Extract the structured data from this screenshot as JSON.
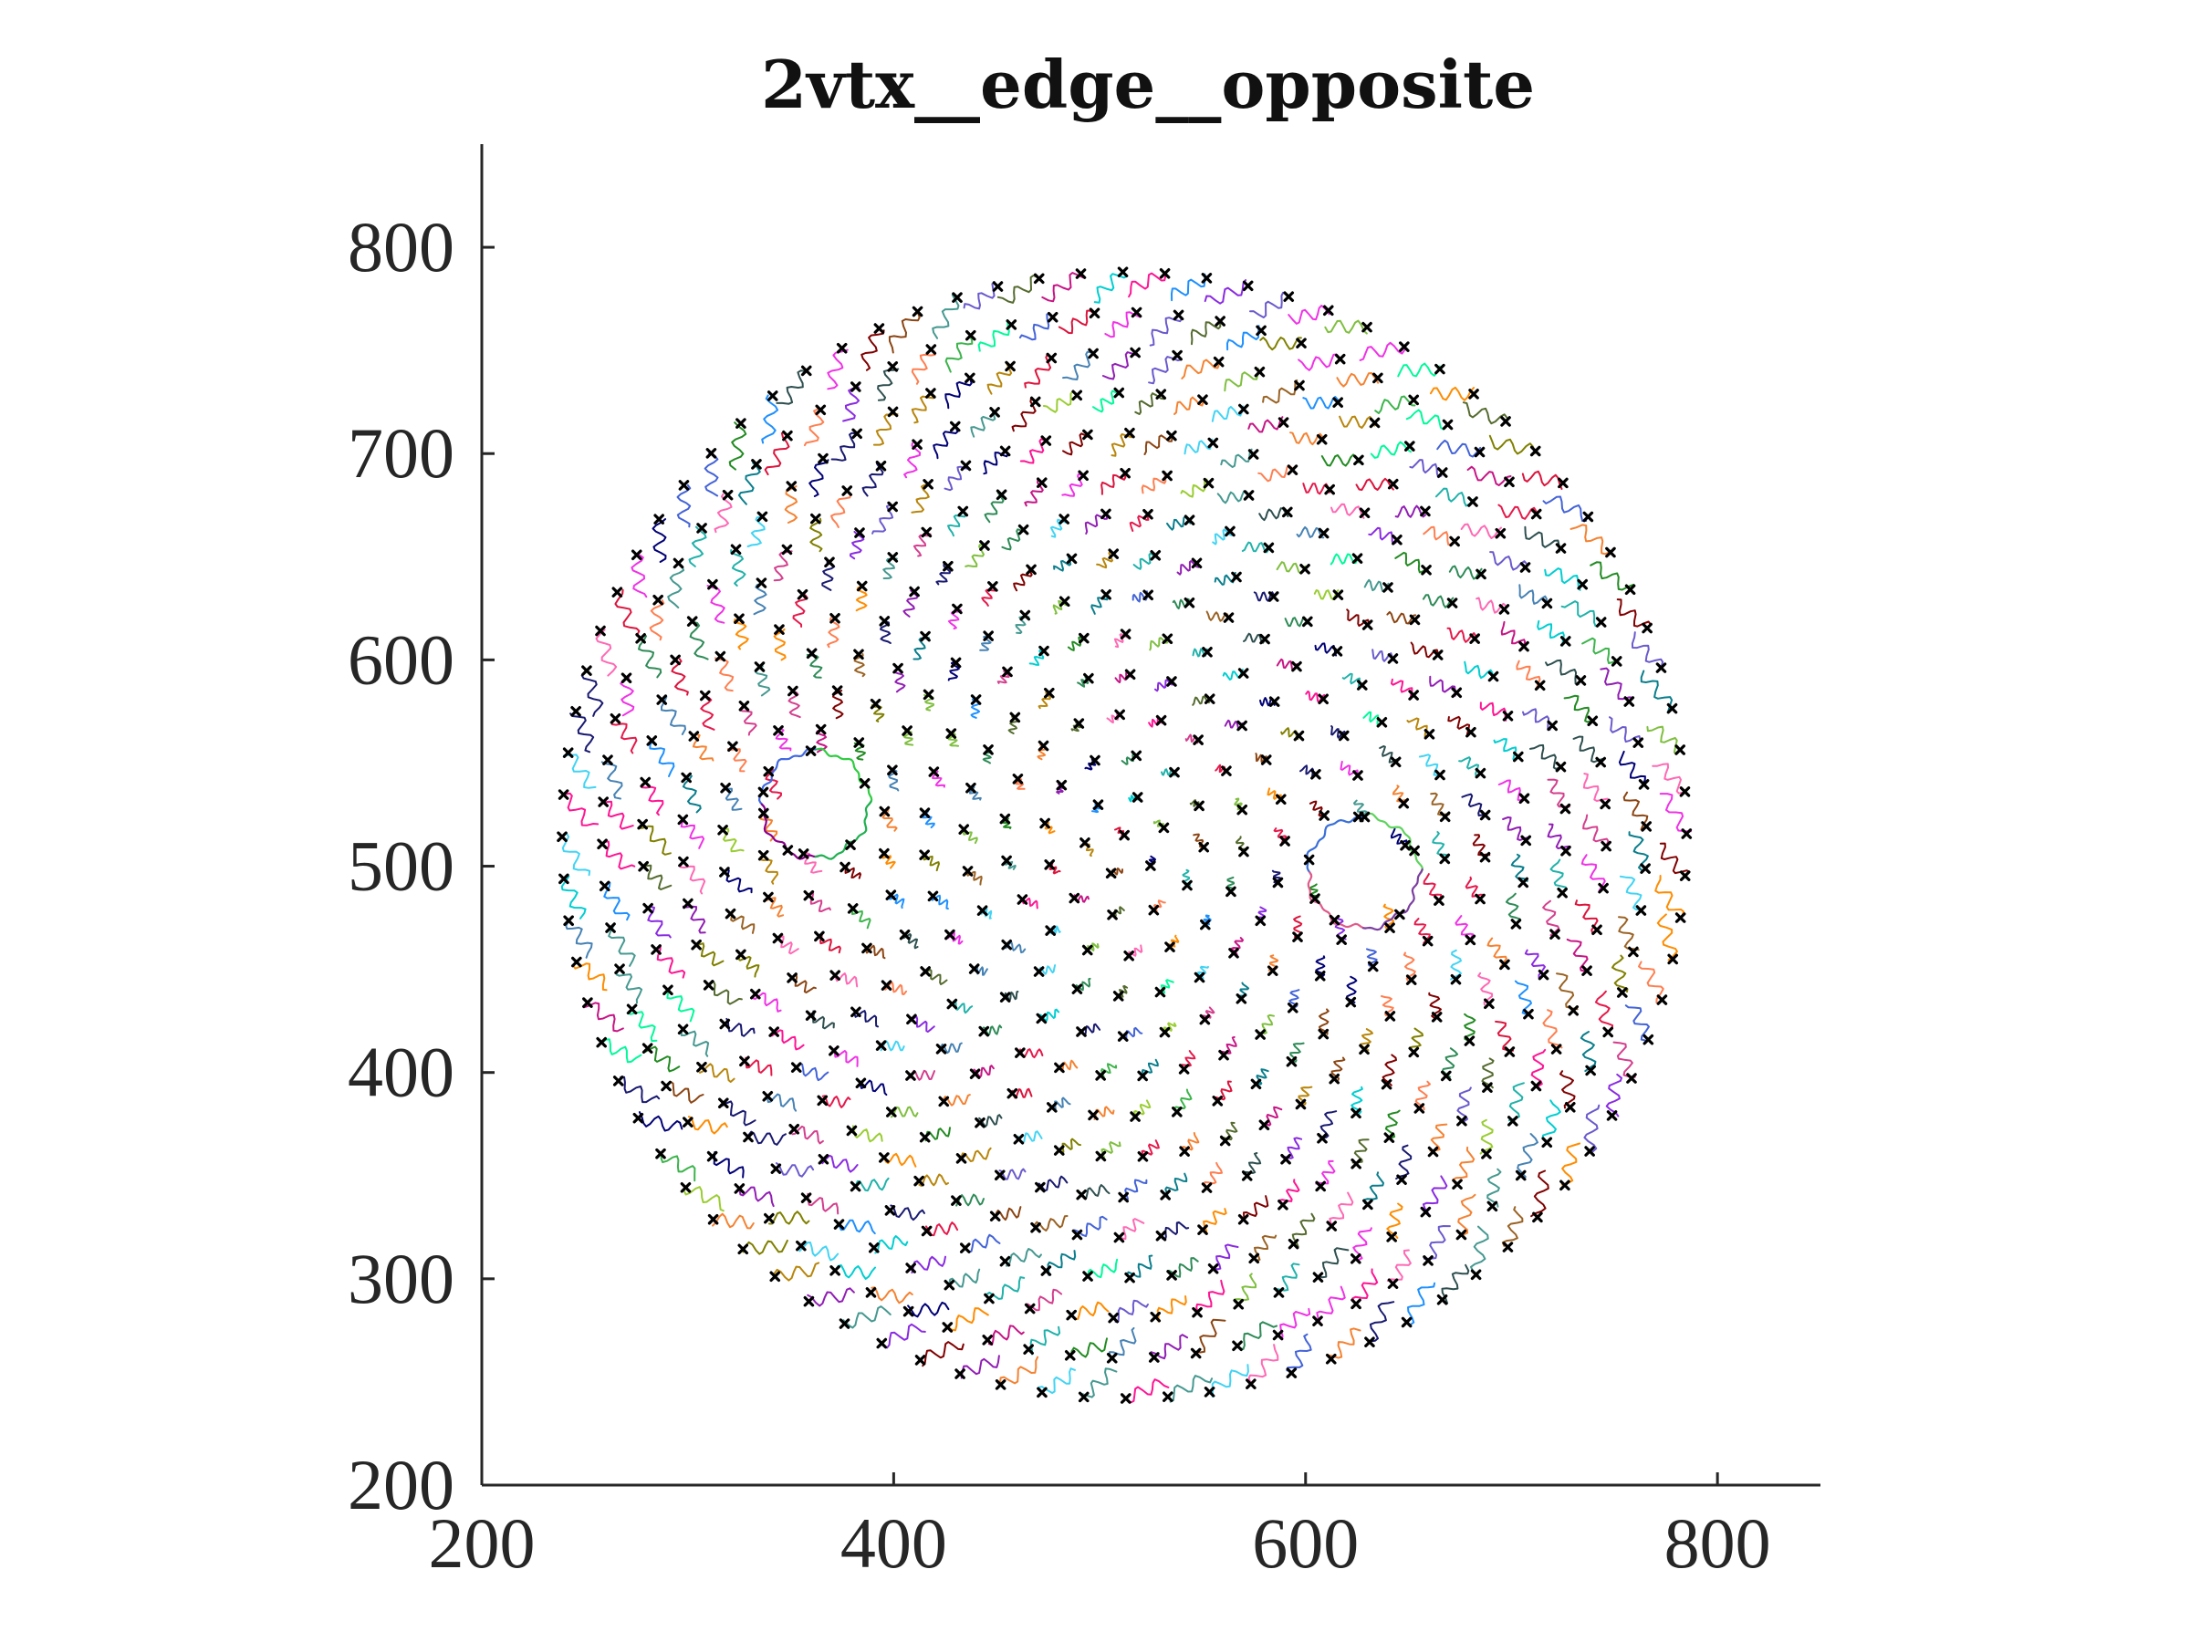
{
  "chart_data": {
    "type": "scatter",
    "title": "2vtx__edge__opposite",
    "xlabel": "",
    "ylabel": "",
    "xlim": [
      200,
      850
    ],
    "ylim": [
      200,
      850
    ],
    "xticks": [
      200,
      400,
      600,
      800
    ],
    "yticks": [
      200,
      300,
      400,
      500,
      600,
      700,
      800
    ],
    "x_tick_labels": [
      "200",
      "400",
      "600",
      "800"
    ],
    "y_tick_labels": [
      "200",
      "300",
      "400",
      "500",
      "600",
      "700",
      "800"
    ],
    "grid": false,
    "legend": "none",
    "marker": "x",
    "marker_color": "#000000",
    "lattice": {
      "center": [
        512,
        515
      ],
      "ring_spacing": 19.5,
      "max_radius": 292,
      "spiral_twist_deg_per_unit": 0.55
    },
    "vortex_loops": [
      {
        "center": [
          362,
          530
        ],
        "radius": 26
      },
      {
        "center": [
          628,
          497
        ],
        "radius": 27
      }
    ],
    "trail_colors": [
      "#e6194b",
      "#3cb44b",
      "#4363d8",
      "#f58231",
      "#911eb4",
      "#42d4f4",
      "#f032e6",
      "#2e8b57",
      "#469990",
      "#9a6324",
      "#800000",
      "#808000",
      "#000075",
      "#0a7e8c",
      "#d43f8d",
      "#7fbf3f",
      "#ff7f50",
      "#1e90ff",
      "#b8860b",
      "#8a2be2",
      "#20b2aa",
      "#dc143c",
      "#00ced1",
      "#556b2f",
      "#ff69b4",
      "#6a5acd",
      "#00fa9a",
      "#ff1493",
      "#2f4f4f",
      "#c71585",
      "#228b22",
      "#4682b4",
      "#8b4513",
      "#9acd32",
      "#191970",
      "#ff8c00"
    ],
    "points_series": "lattice markers with short jittered displacement trails; two vortex cores traced as closed loops"
  }
}
